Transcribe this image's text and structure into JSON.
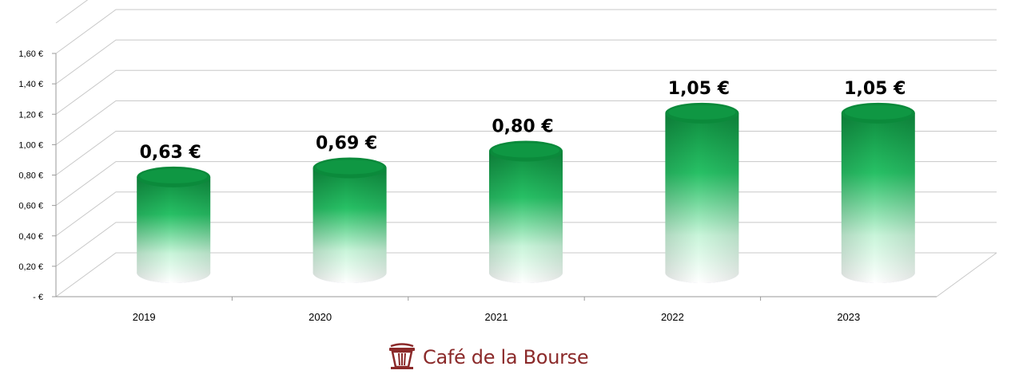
{
  "chart_data": {
    "type": "bar",
    "style": "3d-cylinder",
    "categories": [
      "2019",
      "2020",
      "2021",
      "2022",
      "2023"
    ],
    "values": [
      0.63,
      0.69,
      0.8,
      1.05,
      1.05
    ],
    "data_labels": [
      "0,63 €",
      "0,69 €",
      "0,80 €",
      "1,05 €",
      "1,05 €"
    ],
    "y_ticks": [
      "-  €",
      "0,20 €",
      "0,40 €",
      "0,60 €",
      "0,80 €",
      "1,00 €",
      "1,20 €",
      "1,40 €",
      "1,60 €"
    ],
    "ylim": [
      0,
      1.6
    ],
    "grid": true,
    "title": "",
    "xlabel": "",
    "ylabel": "",
    "colors": {
      "bar_top": "#0f9a45",
      "bar_bottom": "#ffffff",
      "grid": "#c8c8c8"
    }
  },
  "branding": {
    "name": "Café de la Bourse",
    "icon": "cup-icon",
    "color": "#8b2a2a"
  }
}
